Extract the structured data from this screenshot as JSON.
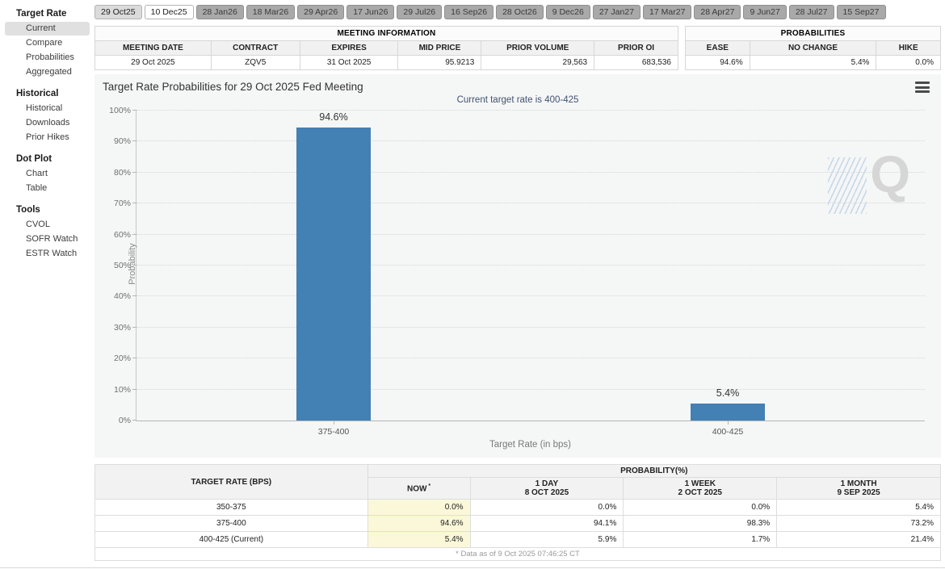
{
  "colors": {
    "bar": "#4380b4",
    "subtitle": "#41536f",
    "now_highlight": "#fbf8d9",
    "panel_bg": "#f5f6f6"
  },
  "sidebar": {
    "sections": [
      {
        "header": "Target Rate",
        "selected": "Current",
        "items": [
          "Current",
          "Compare",
          "Probabilities",
          "Aggregated"
        ]
      },
      {
        "header": "Historical",
        "selected": "",
        "items": [
          "Historical",
          "Downloads",
          "Prior Hikes"
        ]
      },
      {
        "header": "Dot Plot",
        "selected": "",
        "items": [
          "Chart",
          "Table"
        ]
      },
      {
        "header": "Tools",
        "selected": "",
        "items": [
          "CVOL",
          "SOFR Watch",
          "ESTR Watch"
        ]
      }
    ]
  },
  "tabs": {
    "items": [
      "29 Oct25",
      "10 Dec25",
      "28 Jan26",
      "18 Mar26",
      "29 Apr26",
      "17 Jun26",
      "29 Jul26",
      "16 Sep26",
      "28 Oct26",
      "9 Dec26",
      "27 Jan27",
      "17 Mar27",
      "28 Apr27",
      "9 Jun27",
      "28 Jul27",
      "15 Sep27"
    ],
    "selected_index": 1,
    "near_index": 0
  },
  "meeting_info": {
    "title": "MEETING INFORMATION",
    "headers": [
      "MEETING DATE",
      "CONTRACT",
      "EXPIRES",
      "MID PRICE",
      "PRIOR VOLUME",
      "PRIOR OI"
    ],
    "values": [
      "29 Oct 2025",
      "ZQV5",
      "31 Oct 2025",
      "95.9213",
      "29,563",
      "683,536"
    ],
    "aligns": [
      "center",
      "center",
      "center",
      "right",
      "right",
      "right"
    ]
  },
  "probabilities": {
    "title": "PROBABILITIES",
    "headers": [
      "EASE",
      "NO CHANGE",
      "HIKE"
    ],
    "values": [
      "94.6%",
      "5.4%",
      "0.0%"
    ]
  },
  "chart": {
    "title": "Target Rate Probabilities for 29 Oct 2025 Fed Meeting",
    "subtitle": "Current target rate is 400-425",
    "watermark": "Q",
    "menu_icon": "hamburger-menu-icon"
  },
  "chart_data": {
    "type": "bar",
    "title": "Target Rate Probabilities for 29 Oct 2025 Fed Meeting",
    "subtitle": "Current target rate is 400-425",
    "categories": [
      "375-400",
      "400-425"
    ],
    "values": [
      94.6,
      5.4
    ],
    "bar_labels": [
      "94.6%",
      "5.4%"
    ],
    "xlabel": "Target Rate (in bps)",
    "ylabel": "Probability",
    "ylim": [
      0,
      100
    ],
    "ytick_step": 10,
    "ytick_suffix": "%",
    "grid": "horizontal-dotted",
    "legend": "none",
    "bar_color": "#4380b4"
  },
  "bottom_table": {
    "col1_header": "TARGET RATE (BPS)",
    "group_header": "PROBABILITY(%)",
    "columns": [
      {
        "label": "NOW",
        "sup": "*",
        "sub": ""
      },
      {
        "label": "1 DAY",
        "sup": "",
        "sub": "8 OCT 2025"
      },
      {
        "label": "1 WEEK",
        "sup": "",
        "sub": "2 OCT 2025"
      },
      {
        "label": "1 MONTH",
        "sup": "",
        "sub": "9 SEP 2025"
      }
    ],
    "rows": [
      {
        "rate": "350-375",
        "values": [
          "0.0%",
          "0.0%",
          "0.0%",
          "5.4%"
        ]
      },
      {
        "rate": "375-400",
        "values": [
          "94.6%",
          "94.1%",
          "98.3%",
          "73.2%"
        ]
      },
      {
        "rate": "400-425 (Current)",
        "values": [
          "5.4%",
          "5.9%",
          "1.7%",
          "21.4%"
        ]
      }
    ],
    "footnote": "* Data as of 9 Oct 2025 07:46:25 CT"
  }
}
